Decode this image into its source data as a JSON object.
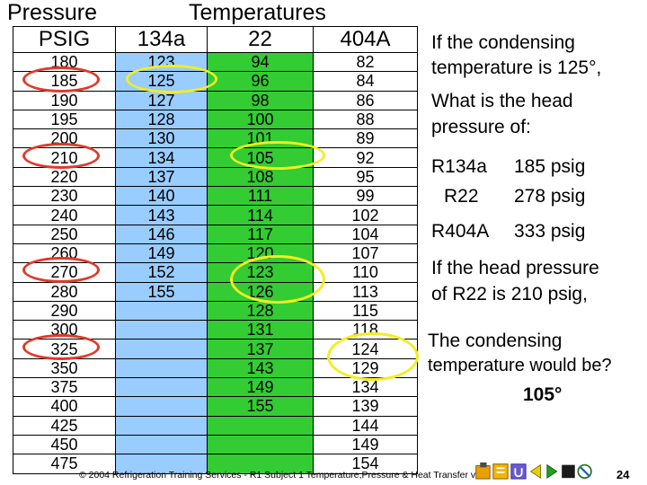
{
  "header": {
    "pressure": "Pressure",
    "temperatures": "Temperatures"
  },
  "table": {
    "columns": [
      "PSIG",
      "134a",
      "22",
      "404A"
    ],
    "rows": [
      [
        "180",
        "123",
        "94",
        "82"
      ],
      [
        "185",
        "125",
        "96",
        "84"
      ],
      [
        "190",
        "127",
        "98",
        "86"
      ],
      [
        "195",
        "128",
        "100",
        "88"
      ],
      [
        "200",
        "130",
        "101",
        "89"
      ],
      [
        "210",
        "134",
        "105",
        "92"
      ],
      [
        "220",
        "137",
        "108",
        "95"
      ],
      [
        "230",
        "140",
        "111",
        "99"
      ],
      [
        "240",
        "143",
        "114",
        "102"
      ],
      [
        "250",
        "146",
        "117",
        "104"
      ],
      [
        "260",
        "149",
        "120",
        "107"
      ],
      [
        "270",
        "152",
        "123",
        "110"
      ],
      [
        "280",
        "155",
        "126",
        "113"
      ],
      [
        "290",
        "",
        "128",
        "115"
      ],
      [
        "300",
        "",
        "131",
        "118"
      ],
      [
        "325",
        "",
        "137",
        "124"
      ],
      [
        "350",
        "",
        "143",
        "129"
      ],
      [
        "375",
        "",
        "149",
        "134"
      ],
      [
        "400",
        "",
        "155",
        "139"
      ],
      [
        "425",
        "",
        "",
        "144"
      ],
      [
        "450",
        "",
        "",
        "149"
      ],
      [
        "475",
        "",
        "",
        "154"
      ]
    ]
  },
  "question1": {
    "line1": "If the condensing",
    "line2": "temperature is 125°,",
    "line3": "What is the head",
    "line4": "pressure of:"
  },
  "answers": [
    {
      "refrigerant": "R134a",
      "value": "185 psig"
    },
    {
      "refrigerant": "R22",
      "value": "278 psig"
    },
    {
      "refrigerant": "R404A",
      "value": "333 psig"
    }
  ],
  "question2": {
    "line1": "If the head pressure",
    "line2": "of R22 is 210 psig,",
    "line3": "The condensing",
    "line4": "temperature would be?",
    "answer": "105°"
  },
  "footer": "© 2004 Refrigeration Training Services - R1 Subject 1 Temperature,Pressure & Heat Transfer v1.2",
  "page_number": "24",
  "colors": {
    "col134a": "#99ccff",
    "col22": "#33cc33",
    "red_oval": "#e03a2a",
    "yellow_oval": "#f2ee22"
  }
}
